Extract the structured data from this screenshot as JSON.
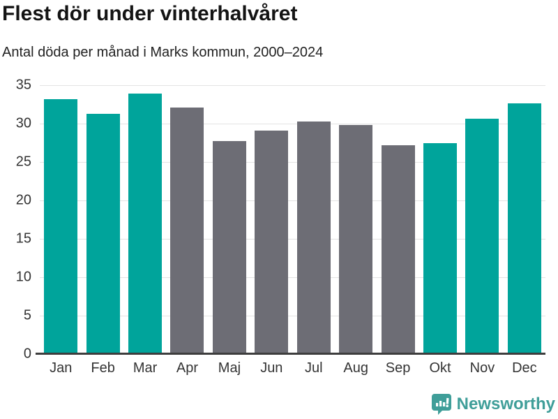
{
  "title": "Flest dör under vinterhalvåret",
  "subtitle": "Antal döda per månad i Marks kommun, 2000–2024",
  "footer": {
    "brand": "Newsworthy"
  },
  "colors": {
    "winter_bar": "#00a49b",
    "summer_bar": "#6d6d75",
    "gridline": "#e3e3e3",
    "axis": "#3d3d3d",
    "brand_teal": "#3f9e99"
  },
  "chart_data": {
    "type": "bar",
    "title": "Flest dör under vinterhalvåret",
    "subtitle": "Antal döda per månad i Marks kommun, 2000–2024",
    "categories": [
      "Jan",
      "Feb",
      "Mar",
      "Apr",
      "Maj",
      "Jun",
      "Jul",
      "Aug",
      "Sep",
      "Okt",
      "Nov",
      "Dec"
    ],
    "values": [
      33.2,
      31.3,
      33.9,
      32.1,
      27.7,
      29.1,
      30.3,
      29.8,
      27.2,
      27.5,
      30.6,
      32.6
    ],
    "bar_colors": [
      "#00a49b",
      "#00a49b",
      "#00a49b",
      "#6d6d75",
      "#6d6d75",
      "#6d6d75",
      "#6d6d75",
      "#6d6d75",
      "#6d6d75",
      "#00a49b",
      "#00a49b",
      "#00a49b"
    ],
    "xlabel": "",
    "ylabel": "",
    "ylim": [
      0,
      35
    ],
    "yticks": [
      0,
      5,
      10,
      15,
      20,
      25,
      30,
      35
    ],
    "grid": true,
    "legend": "none"
  }
}
